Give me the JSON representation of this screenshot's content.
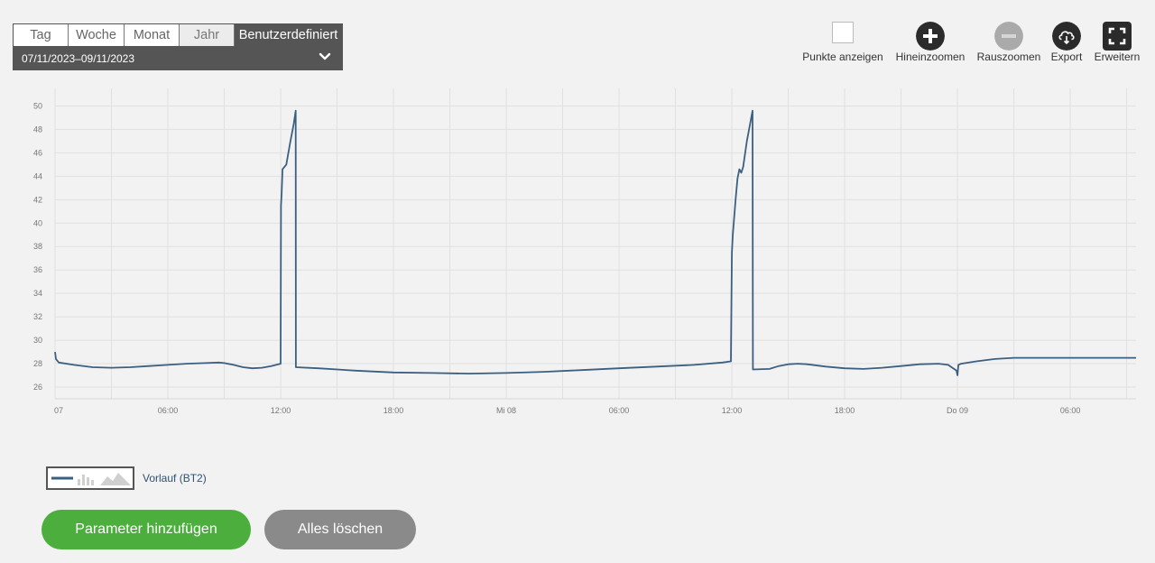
{
  "period_tabs": [
    "Tag",
    "Woche",
    "Monat",
    "Jahr",
    "Benutzerdefiniert"
  ],
  "date_range": "07/11/2023–09/11/2023",
  "toolbar": {
    "show_points": "Punkte anzeigen",
    "zoom_in": "Hineinzoomen",
    "zoom_out": "Rauszoomen",
    "export": "Export",
    "expand": "Erweitern"
  },
  "legend": {
    "label": "Vorlauf (BT2)",
    "color": "#3b5f80"
  },
  "buttons": {
    "add_parameter": "Parameter hinzufügen",
    "clear_all": "Alles löschen"
  },
  "chart_data": {
    "type": "line",
    "x_unit": "hours since 07 00:00",
    "x_tick_labels": [
      {
        "x": 0,
        "label": "07"
      },
      {
        "x": 6,
        "label": "06:00"
      },
      {
        "x": 12,
        "label": "12:00"
      },
      {
        "x": 18,
        "label": "18:00"
      },
      {
        "x": 24,
        "label": "Mi 08"
      },
      {
        "x": 30,
        "label": "06:00"
      },
      {
        "x": 36,
        "label": "12:00"
      },
      {
        "x": 42,
        "label": "18:00"
      },
      {
        "x": 48,
        "label": "Do 09"
      },
      {
        "x": 54,
        "label": "06:00"
      }
    ],
    "xlim": [
      0,
      57.5
    ],
    "ylim": [
      25,
      51.5
    ],
    "y_ticks": [
      26,
      28,
      30,
      32,
      34,
      36,
      38,
      40,
      42,
      44,
      46,
      48,
      50
    ],
    "grid": true,
    "series": [
      {
        "name": "Vorlauf (BT2)",
        "color": "#3b5f80",
        "points": [
          [
            0,
            29
          ],
          [
            0.05,
            28.4
          ],
          [
            0.2,
            28.1
          ],
          [
            1,
            27.9
          ],
          [
            2,
            27.7
          ],
          [
            3,
            27.65
          ],
          [
            4,
            27.7
          ],
          [
            5,
            27.8
          ],
          [
            6,
            27.9
          ],
          [
            7,
            28.0
          ],
          [
            8,
            28.05
          ],
          [
            8.7,
            28.1
          ],
          [
            9,
            28.05
          ],
          [
            9.5,
            27.9
          ],
          [
            10,
            27.7
          ],
          [
            10.5,
            27.6
          ],
          [
            11,
            27.65
          ],
          [
            11.5,
            27.8
          ],
          [
            12,
            28.0
          ],
          [
            12.02,
            41.5
          ],
          [
            12.05,
            42.5
          ],
          [
            12.1,
            44.6
          ],
          [
            12.3,
            45
          ],
          [
            12.5,
            46.8
          ],
          [
            12.7,
            48.5
          ],
          [
            12.8,
            49.6
          ],
          [
            12.81,
            27.7
          ],
          [
            14,
            27.6
          ],
          [
            16,
            27.4
          ],
          [
            18,
            27.25
          ],
          [
            20,
            27.2
          ],
          [
            22,
            27.15
          ],
          [
            24,
            27.2
          ],
          [
            26,
            27.3
          ],
          [
            28,
            27.45
          ],
          [
            30,
            27.6
          ],
          [
            32,
            27.75
          ],
          [
            34,
            27.9
          ],
          [
            35.5,
            28.1
          ],
          [
            35.95,
            28.2
          ],
          [
            36.0,
            37.5
          ],
          [
            36.05,
            39
          ],
          [
            36.2,
            42
          ],
          [
            36.3,
            43.8
          ],
          [
            36.4,
            44.6
          ],
          [
            36.5,
            44.3
          ],
          [
            36.6,
            44.8
          ],
          [
            36.8,
            47
          ],
          [
            37.1,
            49.6
          ],
          [
            37.12,
            27.5
          ],
          [
            38,
            27.55
          ],
          [
            38.5,
            27.8
          ],
          [
            39,
            27.95
          ],
          [
            39.5,
            28.0
          ],
          [
            40,
            27.95
          ],
          [
            41,
            27.75
          ],
          [
            42,
            27.6
          ],
          [
            43,
            27.55
          ],
          [
            44,
            27.65
          ],
          [
            45,
            27.8
          ],
          [
            46,
            27.95
          ],
          [
            47,
            28.0
          ],
          [
            47.5,
            27.9
          ],
          [
            47.95,
            27.4
          ],
          [
            48.0,
            27.0
          ],
          [
            48.05,
            27.9
          ],
          [
            48.2,
            28.0
          ],
          [
            49,
            28.2
          ],
          [
            50,
            28.4
          ],
          [
            51,
            28.5
          ],
          [
            53,
            28.5
          ],
          [
            55,
            28.5
          ],
          [
            57.5,
            28.5
          ]
        ]
      }
    ]
  }
}
